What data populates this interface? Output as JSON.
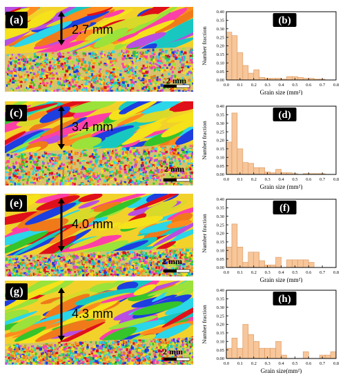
{
  "colors": {
    "bar_fill": "#f7c69a",
    "bar_stroke": "#d9945a"
  },
  "scale_bar_label": "2 mm",
  "panels": [
    {
      "label": "(a)",
      "thickness": "2.7 mm"
    },
    {
      "label": "(c)",
      "thickness": "3.4 mm"
    },
    {
      "label": "(e)",
      "thickness": "4.0 mm"
    },
    {
      "label": "(g)",
      "thickness": "4.3 mm"
    }
  ],
  "chart_data": [
    {
      "type": "bar",
      "panel_label": "(b)",
      "xlabel": "Grain size (mm²)",
      "ylabel": "Number fraction",
      "xlim": [
        0.0,
        0.8
      ],
      "ylim": [
        0.0,
        0.4
      ],
      "xticks": [
        "0.0",
        "0.1",
        "0.2",
        "0.3",
        "0.4",
        "0.5",
        "0.6",
        "0.7",
        "0.8"
      ],
      "yticks": [
        "0.00",
        "0.05",
        "0.10",
        "0.15",
        "0.20",
        "0.25",
        "0.30",
        "0.35",
        "0.40"
      ],
      "bin_width": 0.04,
      "bin_starts": [
        0.0,
        0.04,
        0.08,
        0.12,
        0.16,
        0.2,
        0.24,
        0.28,
        0.32,
        0.36,
        0.4,
        0.44,
        0.48,
        0.52,
        0.56,
        0.6,
        0.64,
        0.68
      ],
      "values": [
        0.28,
        0.26,
        0.16,
        0.085,
        0.04,
        0.06,
        0.015,
        0.01,
        0.01,
        0.01,
        0.005,
        0.02,
        0.02,
        0.015,
        0.01,
        0.01,
        0.005,
        0.005
      ]
    },
    {
      "type": "bar",
      "panel_label": "(d)",
      "xlabel": "Grain size (mm²)",
      "ylabel": "Number fraction",
      "xlim": [
        0.0,
        0.8
      ],
      "ylim": [
        0.0,
        0.4
      ],
      "xticks": [
        "0.0",
        "0.1",
        "0.2",
        "0.3",
        "0.4",
        "0.5",
        "0.6",
        "0.7",
        "0.8"
      ],
      "yticks": [
        "0.00",
        "0.05",
        "0.10",
        "0.15",
        "0.20",
        "0.25",
        "0.30",
        "0.35",
        "0.40"
      ],
      "bin_width": 0.04,
      "bin_starts": [
        0.0,
        0.04,
        0.08,
        0.12,
        0.16,
        0.2,
        0.24,
        0.28,
        0.32,
        0.36,
        0.4,
        0.44,
        0.48,
        0.52,
        0.56,
        0.6,
        0.64,
        0.68
      ],
      "values": [
        0.19,
        0.36,
        0.15,
        0.07,
        0.065,
        0.04,
        0.04,
        0.015,
        0.01,
        0.03,
        0.01,
        0.01,
        0.005,
        0.0,
        0.005,
        0.005,
        0.005,
        0.005
      ]
    },
    {
      "type": "bar",
      "panel_label": "(f)",
      "xlabel": "Grain size  (mm²)",
      "ylabel": "Number fraction",
      "xlim": [
        0.0,
        0.8
      ],
      "ylim": [
        0.0,
        0.4
      ],
      "xticks": [
        "0.0",
        "0.1",
        "0.2",
        "0.3",
        "0.4",
        "0.5",
        "0.6",
        "0.7",
        "0.8"
      ],
      "yticks": [
        "0.00",
        "0.05",
        "0.10",
        "0.15",
        "0.20",
        "0.25",
        "0.30",
        "0.35",
        "0.40"
      ],
      "bin_width": 0.04,
      "bin_starts": [
        0.0,
        0.04,
        0.08,
        0.12,
        0.16,
        0.2,
        0.24,
        0.28,
        0.32,
        0.36,
        0.4,
        0.44,
        0.48,
        0.52,
        0.56,
        0.6,
        0.64,
        0.68
      ],
      "values": [
        0.12,
        0.255,
        0.12,
        0.03,
        0.09,
        0.09,
        0.04,
        0.015,
        0.015,
        0.06,
        0.0,
        0.045,
        0.045,
        0.045,
        0.045,
        0.03,
        0.0,
        0.0
      ]
    },
    {
      "type": "bar",
      "panel_label": "(h)",
      "xlabel": "Grain size(mm²)",
      "ylabel": "Number fraction",
      "xlim": [
        0.0,
        0.8
      ],
      "ylim": [
        0.0,
        0.4
      ],
      "xticks": [
        "0.0",
        "0.1",
        "0.2",
        "0.3",
        "0.4",
        "0.5",
        "0.6",
        "0.7",
        "0.8"
      ],
      "yticks": [
        "0.00",
        "0.05",
        "0.10",
        "0.15",
        "0.20",
        "0.25",
        "0.30",
        "0.35",
        "0.40"
      ],
      "bin_width": 0.04,
      "bin_starts": [
        0.0,
        0.04,
        0.08,
        0.12,
        0.16,
        0.2,
        0.24,
        0.28,
        0.32,
        0.36,
        0.4,
        0.44,
        0.48,
        0.52,
        0.56,
        0.6,
        0.64,
        0.68,
        0.72,
        0.76
      ],
      "values": [
        0.06,
        0.12,
        0.06,
        0.2,
        0.14,
        0.1,
        0.06,
        0.06,
        0.06,
        0.1,
        0.02,
        0.0,
        0.0,
        0.0,
        0.04,
        0.0,
        0.0,
        0.02,
        0.02,
        0.04
      ]
    }
  ]
}
